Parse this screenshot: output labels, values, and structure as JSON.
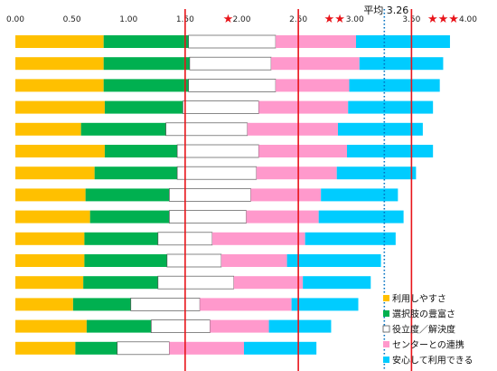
{
  "chart_data": {
    "type": "bar",
    "orientation": "horizontal",
    "stacked": true,
    "title": "",
    "xlabel": "",
    "ylabel": "",
    "xlim": [
      0,
      4
    ],
    "x_ticks": [
      "0.00",
      "0.50",
      "1.00",
      "1.50",
      "2.00",
      "2.50",
      "3.00",
      "3.50",
      "4.00"
    ],
    "grid": false,
    "legend_position": "bottom-right",
    "series": [
      {
        "name": "利用しやすさ",
        "color": "#ffc000",
        "values": [
          0.78,
          0.78,
          0.78,
          0.79,
          0.58,
          0.79,
          0.7,
          0.62,
          0.66,
          0.61,
          0.61,
          0.6,
          0.51,
          0.63,
          0.53
        ]
      },
      {
        "name": "選択肢の豊富さ",
        "color": "#00b050",
        "values": [
          0.75,
          0.76,
          0.75,
          0.69,
          0.75,
          0.64,
          0.73,
          0.74,
          0.7,
          0.65,
          0.73,
          0.66,
          0.51,
          0.57,
          0.37
        ]
      },
      {
        "name": "役立度／解決度",
        "color": "#ffffff",
        "values": [
          0.77,
          0.72,
          0.77,
          0.67,
          0.72,
          0.72,
          0.7,
          0.72,
          0.68,
          0.48,
          0.48,
          0.67,
          0.61,
          0.52,
          0.46
        ]
      },
      {
        "name": "センターとの連携",
        "color": "#ff99cc",
        "values": [
          0.71,
          0.78,
          0.65,
          0.79,
          0.8,
          0.78,
          0.71,
          0.62,
          0.64,
          0.82,
          0.58,
          0.61,
          0.81,
          0.52,
          0.66
        ]
      },
      {
        "name": "安心して利用できる",
        "color": "#00ccff",
        "values": [
          0.83,
          0.74,
          0.8,
          0.75,
          0.75,
          0.76,
          0.7,
          0.68,
          0.75,
          0.8,
          0.83,
          0.6,
          0.59,
          0.55,
          0.64
        ]
      }
    ],
    "reference_lines": [
      {
        "value": 1.5,
        "style": "solid",
        "color": "#e8141a"
      },
      {
        "value": 2.5,
        "style": "solid",
        "color": "#e8141a"
      },
      {
        "value": 3.26,
        "style": "dotted",
        "color": "#0070c0"
      },
      {
        "value": 3.5,
        "style": "solid",
        "color": "#e8141a"
      }
    ],
    "annotations": {
      "average_label": "平均 3.26",
      "stars": [
        {
          "value": 1.88,
          "text": "★"
        },
        {
          "value": 2.82,
          "text": "★★"
        },
        {
          "value": 3.78,
          "text": "★★★"
        }
      ]
    }
  }
}
